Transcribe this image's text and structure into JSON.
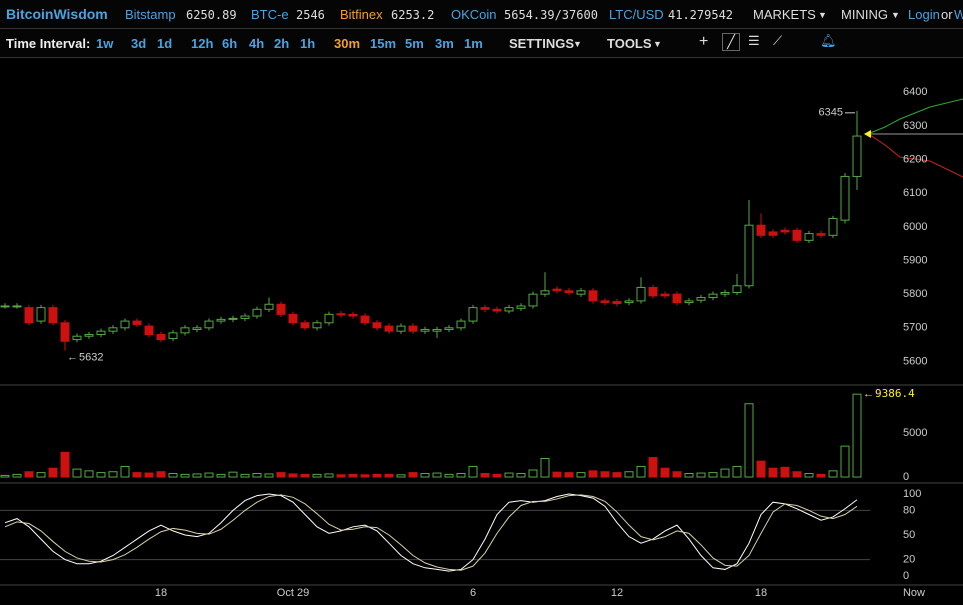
{
  "header": {
    "brand": "BitcoinWisdom",
    "tickers": [
      {
        "name": "Bitstamp",
        "value": 6250.89,
        "color": "#4aa3df"
      },
      {
        "name": "BTC-e",
        "value": 2546,
        "color": "#4aa3df"
      },
      {
        "name": "Bitfinex",
        "value": 6253.2,
        "color": "#f0a030"
      },
      {
        "name": "OKCoin",
        "value": "5654.39/37600",
        "color": "#4aa3df"
      },
      {
        "name": "LTC/USD",
        "value": 41.279542,
        "color": "#4aa3df"
      }
    ],
    "menus": [
      "MARKETS",
      "MINING"
    ],
    "login": "Login",
    "or": "or",
    "cut": "Wisdo"
  },
  "toolbar": {
    "label": "Time Interval:",
    "intervals": [
      "1w",
      "3d",
      "1d",
      "12h",
      "6h",
      "4h",
      "2h",
      "1h",
      "30m",
      "15m",
      "5m",
      "3m",
      "1m"
    ],
    "active_interval": 8,
    "settings": "SETTINGS",
    "tools": "TOOLS"
  },
  "chart_data": [
    {
      "type": "candlestick",
      "up_color": "#55aa44",
      "down_color": "#cc1111",
      "categories": [
        null,
        null,
        null,
        null,
        null,
        null,
        null,
        null,
        null,
        null,
        null,
        null,
        null,
        "18",
        null,
        null,
        null,
        null,
        null,
        null,
        null,
        null,
        null,
        null,
        "Oct 29",
        null,
        null,
        null,
        null,
        null,
        null,
        null,
        null,
        null,
        null,
        null,
        null,
        null,
        null,
        "6",
        null,
        null,
        null,
        null,
        null,
        null,
        null,
        null,
        null,
        null,
        null,
        "12",
        null,
        null,
        null,
        null,
        null,
        null,
        null,
        null,
        null,
        null,
        null,
        "18",
        null,
        null,
        null,
        null,
        null,
        null,
        null,
        null
      ],
      "now_label": "Now",
      "open": [
        5765,
        5765,
        5760,
        5720,
        5760,
        5715,
        5665,
        5675,
        5680,
        5690,
        5700,
        5720,
        5705,
        5680,
        5668,
        5685,
        5695,
        5700,
        5720,
        5725,
        5728,
        5735,
        5755,
        5770,
        5740,
        5715,
        5700,
        5715,
        5742,
        5740,
        5735,
        5715,
        5705,
        5690,
        5705,
        5690,
        5690,
        5695,
        5700,
        5720,
        5760,
        5755,
        5750,
        5758,
        5765,
        5800,
        5815,
        5810,
        5800,
        5810,
        5780,
        5778,
        5775,
        5780,
        5820,
        5800,
        5800,
        5775,
        5782,
        5790,
        5800,
        5805,
        5825,
        6005,
        5985,
        5990,
        5990,
        5960,
        5980,
        5975,
        6020,
        6150
      ],
      "high": [
        5773,
        5773,
        5768,
        5768,
        5768,
        5723,
        5683,
        5688,
        5698,
        5708,
        5728,
        5728,
        5713,
        5688,
        5693,
        5708,
        5708,
        5728,
        5733,
        5736,
        5743,
        5763,
        5790,
        5778,
        5748,
        5723,
        5723,
        5748,
        5750,
        5748,
        5743,
        5723,
        5713,
        5713,
        5713,
        5703,
        5703,
        5708,
        5728,
        5768,
        5768,
        5763,
        5768,
        5773,
        5808,
        5865,
        5823,
        5818,
        5818,
        5818,
        5788,
        5786,
        5788,
        5850,
        5828,
        5808,
        5808,
        5788,
        5798,
        5808,
        5813,
        5860,
        6080,
        6040,
        5993,
        5998,
        5998,
        5988,
        5988,
        6033,
        6160,
        6345
      ],
      "low": [
        5757,
        5757,
        5707,
        5712,
        5707,
        5632,
        5657,
        5667,
        5672,
        5682,
        5692,
        5702,
        5672,
        5657,
        5660,
        5677,
        5687,
        5692,
        5712,
        5717,
        5720,
        5727,
        5747,
        5732,
        5707,
        5692,
        5692,
        5707,
        5730,
        5727,
        5707,
        5692,
        5682,
        5682,
        5682,
        5682,
        5670,
        5687,
        5692,
        5712,
        5747,
        5742,
        5742,
        5750,
        5757,
        5792,
        5802,
        5797,
        5792,
        5772,
        5767,
        5764,
        5767,
        5772,
        5787,
        5787,
        5767,
        5767,
        5774,
        5782,
        5792,
        5797,
        5817,
        5967,
        5967,
        5977,
        5952,
        5952,
        5967,
        5967,
        6010,
        6110
      ],
      "close": [
        5765,
        5765,
        5715,
        5760,
        5715,
        5660,
        5675,
        5680,
        5690,
        5700,
        5720,
        5710,
        5680,
        5665,
        5685,
        5700,
        5700,
        5720,
        5725,
        5728,
        5735,
        5755,
        5770,
        5740,
        5715,
        5700,
        5715,
        5740,
        5738,
        5735,
        5715,
        5700,
        5690,
        5705,
        5690,
        5695,
        5695,
        5700,
        5720,
        5760,
        5755,
        5750,
        5760,
        5765,
        5800,
        5810,
        5810,
        5805,
        5810,
        5780,
        5775,
        5772,
        5780,
        5820,
        5795,
        5795,
        5775,
        5780,
        5790,
        5800,
        5805,
        5825,
        6005,
        5975,
        5975,
        5985,
        5960,
        5980,
        5975,
        6025,
        6150,
        6270
      ],
      "ylim": [
        5530,
        6505
      ],
      "yticks": [
        5600,
        5700,
        5800,
        5900,
        6000,
        6100,
        6200,
        6300,
        6400
      ]
    },
    {
      "type": "bar",
      "values": [
        180,
        300,
        600,
        500,
        1000,
        2800,
        900,
        700,
        500,
        600,
        1200,
        500,
        450,
        600,
        400,
        300,
        350,
        450,
        300,
        550,
        300,
        400,
        350,
        500,
        350,
        300,
        300,
        350,
        250,
        300,
        250,
        300,
        300,
        250,
        500,
        400,
        450,
        300,
        400,
        1200,
        400,
        300,
        450,
        400,
        800,
        2100,
        550,
        500,
        500,
        700,
        600,
        500,
        600,
        1200,
        2200,
        1000,
        600,
        400,
        450,
        500,
        900,
        1200,
        8300,
        1800,
        1000,
        1100,
        600,
        400,
        300,
        700,
        3500,
        9386.4
      ],
      "label_color": "#ffee22",
      "ylim": [
        -450,
        10200
      ],
      "yticks": [
        0,
        5000
      ]
    },
    {
      "type": "line",
      "series": [
        {
          "color": "#ffffff",
          "values": [
            65,
            70,
            60,
            45,
            30,
            20,
            15,
            15,
            18,
            25,
            35,
            45,
            55,
            62,
            55,
            50,
            48,
            52,
            65,
            80,
            92,
            98,
            100,
            98,
            90,
            75,
            60,
            52,
            55,
            60,
            62,
            55,
            40,
            25,
            15,
            10,
            8,
            6,
            8,
            20,
            45,
            75,
            90,
            92,
            90,
            92,
            97,
            100,
            98,
            95,
            85,
            65,
            48,
            40,
            45,
            55,
            62,
            45,
            25,
            10,
            8,
            15,
            40,
            75,
            90,
            88,
            82,
            75,
            68,
            72,
            82,
            93
          ]
        },
        {
          "color": "#d8d0a8",
          "values": [
            60,
            66,
            64,
            55,
            42,
            30,
            22,
            18,
            17,
            20,
            26,
            35,
            45,
            54,
            58,
            56,
            52,
            51,
            57,
            68,
            80,
            90,
            97,
            99,
            96,
            88,
            76,
            63,
            56,
            57,
            60,
            59,
            50,
            38,
            25,
            16,
            11,
            8,
            7,
            12,
            28,
            52,
            72,
            86,
            91,
            91,
            94,
            98,
            99,
            97,
            91,
            78,
            62,
            48,
            44,
            48,
            55,
            52,
            38,
            22,
            13,
            12,
            25,
            52,
            78,
            88,
            86,
            80,
            73,
            70,
            75,
            85
          ]
        }
      ],
      "ylim": [
        -11,
        111
      ],
      "yticks": [
        0,
        20,
        50,
        80,
        100
      ],
      "grid": [
        80,
        20
      ]
    }
  ]
}
